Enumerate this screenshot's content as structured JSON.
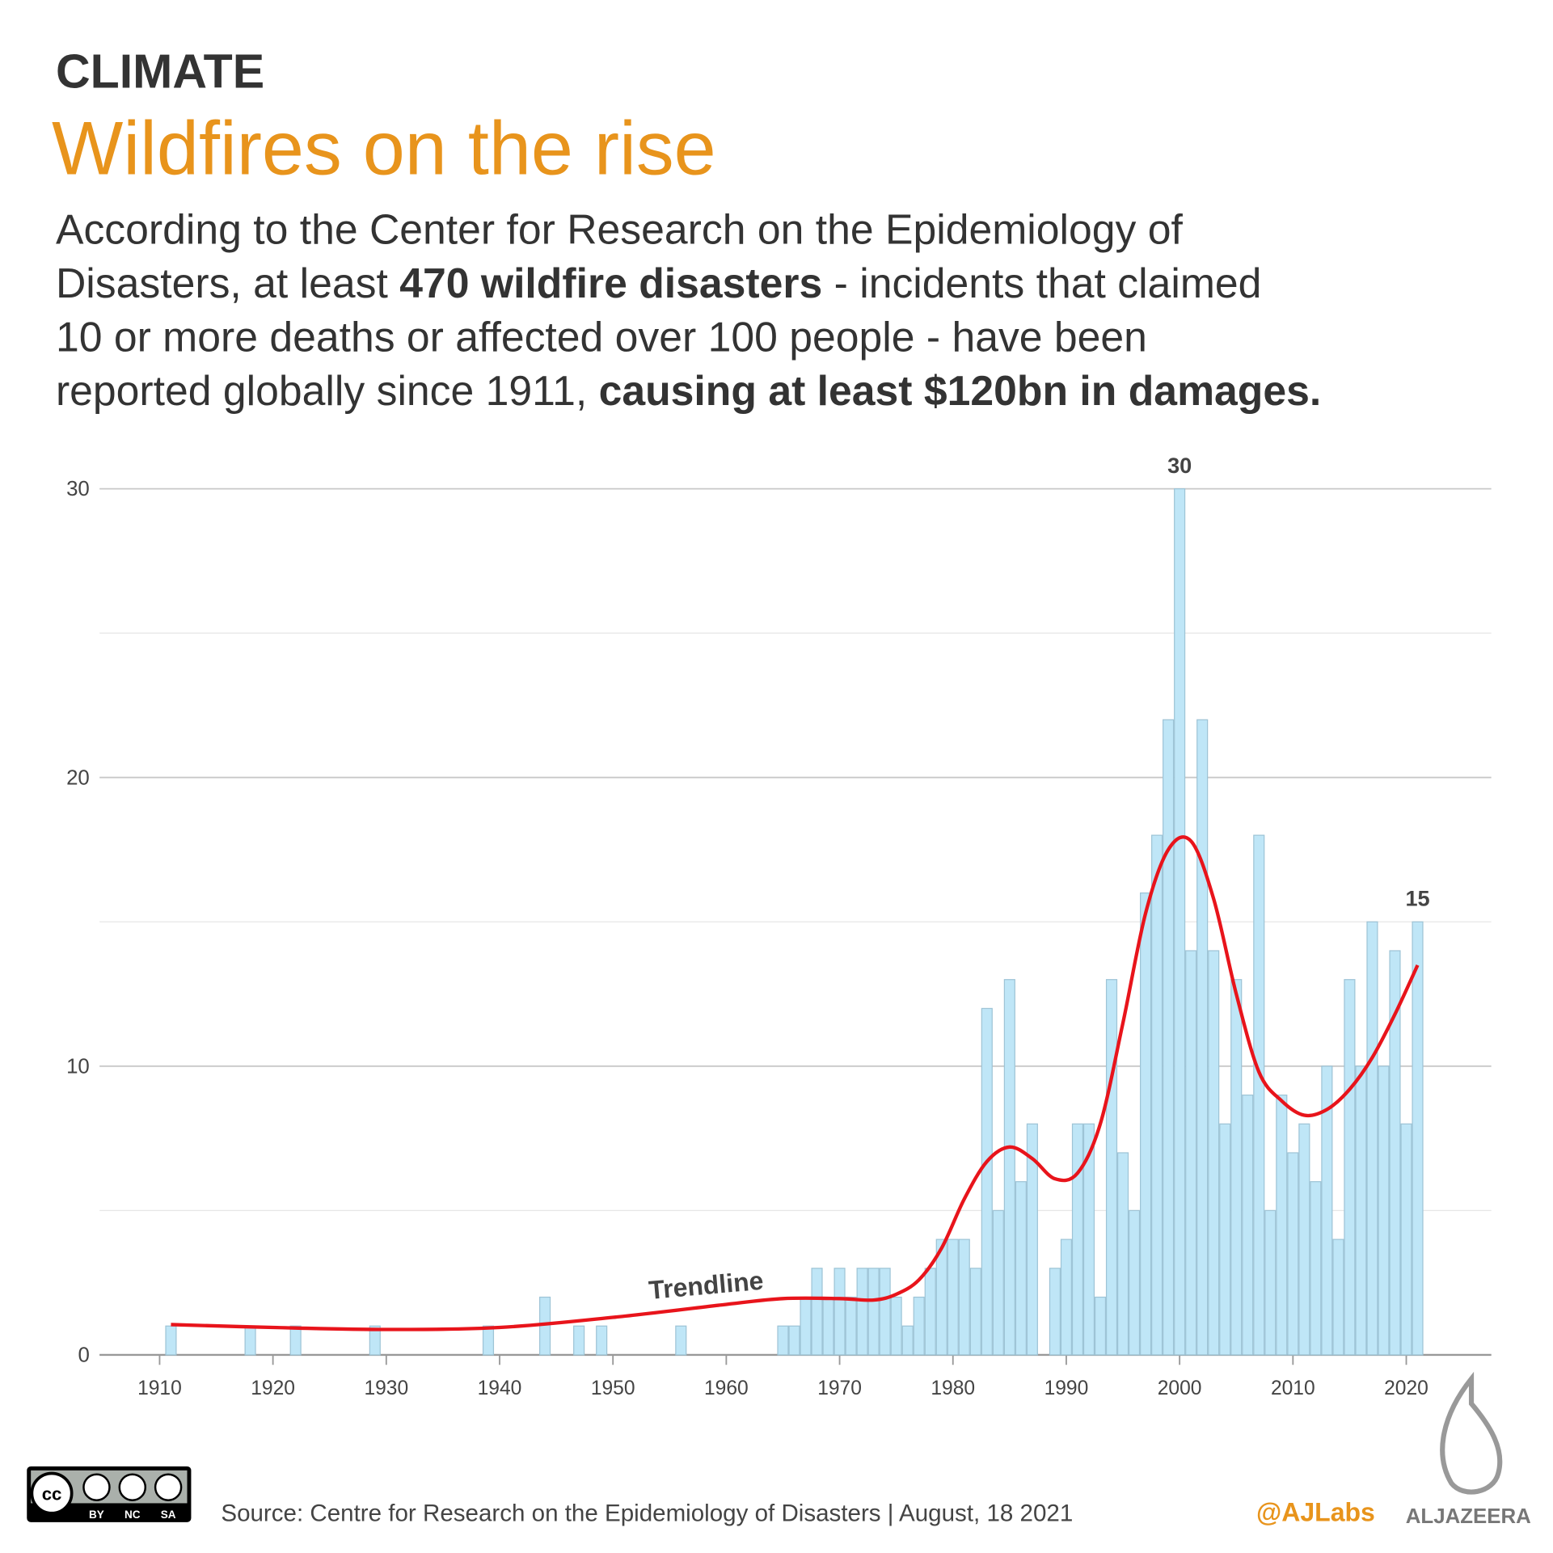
{
  "chart_data": {
    "type": "bar",
    "kicker": "CLIMATE",
    "title": "Wildfires on the rise",
    "subtitle": [
      [
        {
          "text": "According to the Center for Research on the Epidemiology of",
          "bold": false
        }
      ],
      [
        {
          "text": "Disasters, at least ",
          "bold": false
        },
        {
          "text": "470 wildfire disasters",
          "bold": true
        },
        {
          "text": " - incidents that claimed",
          "bold": false
        }
      ],
      [
        {
          "text": "10 or more deaths or affected over 100 people - have been",
          "bold": false
        }
      ],
      [
        {
          "text": "reported globally since 1911, ",
          "bold": false
        },
        {
          "text": "causing at least $120bn in damages.",
          "bold": true
        }
      ]
    ],
    "x": [
      1911,
      1918,
      1922,
      1929,
      1939,
      1944,
      1947,
      1949,
      1956,
      1965,
      1966,
      1967,
      1968,
      1969,
      1970,
      1971,
      1972,
      1973,
      1974,
      1975,
      1976,
      1977,
      1978,
      1979,
      1980,
      1981,
      1982,
      1983,
      1984,
      1985,
      1986,
      1987,
      1989,
      1990,
      1991,
      1992,
      1993,
      1994,
      1995,
      1996,
      1997,
      1998,
      1999,
      2000,
      2001,
      2002,
      2003,
      2004,
      2005,
      2006,
      2007,
      2008,
      2009,
      2010,
      2011,
      2012,
      2013,
      2014,
      2015,
      2016,
      2017,
      2018,
      2019,
      2020,
      2021
    ],
    "values": [
      1,
      1,
      1,
      1,
      1,
      2,
      1,
      1,
      1,
      1,
      1,
      2,
      3,
      2,
      3,
      2,
      3,
      3,
      3,
      2,
      1,
      2,
      3,
      4,
      4,
      4,
      3,
      12,
      5,
      13,
      6,
      8,
      3,
      4,
      8,
      8,
      2,
      13,
      7,
      5,
      16,
      18,
      22,
      30,
      14,
      22,
      14,
      8,
      13,
      9,
      18,
      5,
      9,
      7,
      8,
      6,
      10,
      4,
      13,
      10,
      15,
      10,
      14,
      8,
      15
    ],
    "color": "#bfe6f7",
    "stroke": "#9ec4d6",
    "trend": {
      "name": "Trendline",
      "color": "#e8141b",
      "x": [
        1911,
        1920,
        1930,
        1940,
        1950,
        1960,
        1965,
        1970,
        1973,
        1975,
        1977,
        1979,
        1981,
        1983,
        1985,
        1987,
        1989,
        1991,
        1993,
        1995,
        1997,
        1999,
        2001,
        2003,
        2005,
        2007,
        2009,
        2011,
        2013,
        2015,
        2017,
        2019,
        2021
      ],
      "values": [
        1.05,
        0.95,
        0.88,
        0.95,
        1.3,
        1.75,
        1.95,
        1.95,
        1.9,
        2.1,
        2.6,
        3.7,
        5.4,
        6.7,
        7.2,
        6.8,
        6.1,
        6.3,
        8,
        11.5,
        15.3,
        17.5,
        17.8,
        15.8,
        12.5,
        9.8,
        8.8,
        8.3,
        8.5,
        9.2,
        10.3,
        11.8,
        13.5
      ]
    },
    "annotations": [
      {
        "x": 2000,
        "y": 30
      },
      {
        "x": 2021,
        "y": 15
      }
    ],
    "xlim": [
      1904.7,
      2027.5
    ],
    "xticks": [
      1910,
      1920,
      1930,
      1940,
      1950,
      1960,
      1970,
      1980,
      1990,
      2000,
      2010,
      2020
    ],
    "ylim": [
      0,
      30
    ],
    "yticks": [
      0,
      10,
      20,
      30
    ],
    "minor_gridlines": [
      5,
      15,
      25
    ],
    "grid": true,
    "source": "Source: Centre for Research on the Epidemiology of Disasters | August, 18 2021",
    "handle": "@AJLabs",
    "brand": "ALJAZEERA",
    "license": [
      "BY",
      "NC",
      "SA"
    ]
  }
}
